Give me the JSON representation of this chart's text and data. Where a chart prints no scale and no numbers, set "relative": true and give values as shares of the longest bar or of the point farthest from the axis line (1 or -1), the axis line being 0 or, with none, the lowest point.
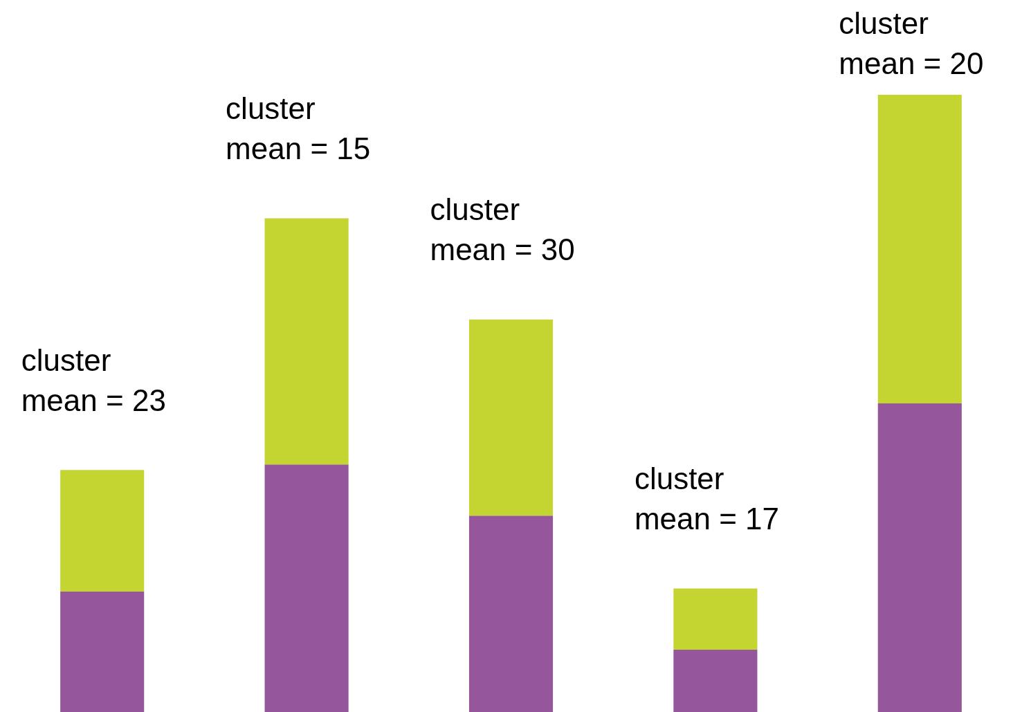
{
  "chart_data": {
    "type": "bar",
    "relative": true,
    "stacked": true,
    "categories": [
      null,
      null,
      null,
      null,
      null
    ],
    "series": [
      {
        "color": "#95569b",
        "values": [
          0.195,
          0.401,
          0.318,
          0.101,
          0.5
        ]
      },
      {
        "color": "#c4d431",
        "values": [
          0.197,
          0.399,
          0.318,
          0.099,
          0.5
        ]
      }
    ],
    "annotations": [
      "cluster\nmean = 23",
      "cluster\nmean = 15",
      "cluster\nmean = 30",
      "cluster\nmean = 17",
      "cluster\nmean = 20"
    ]
  }
}
